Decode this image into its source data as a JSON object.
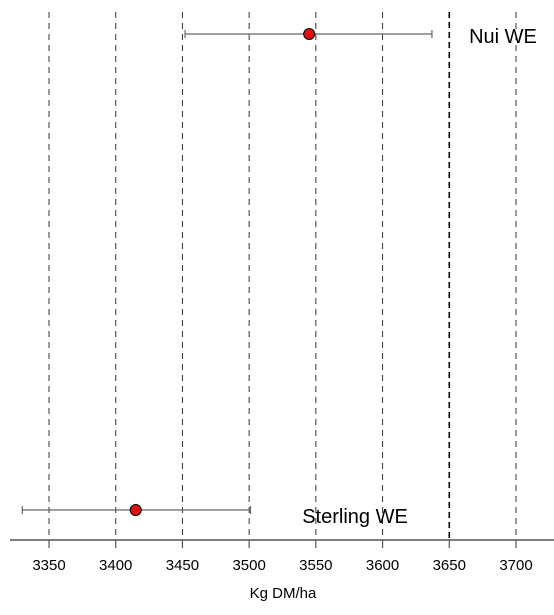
{
  "chart_data": {
    "type": "scatter",
    "subtype": "point-with-error-bars",
    "title": "",
    "xlabel": "Kg DM/ha",
    "ylabel": "",
    "xlim": [
      3330,
      3725
    ],
    "xticks": [
      3350,
      3400,
      3450,
      3500,
      3550,
      3600,
      3650,
      3700
    ],
    "grid": "vertical dashed",
    "highlight_line_x": 3650,
    "point_color": "#dd1111",
    "series": [
      {
        "name": "Nui WE",
        "value": 3545,
        "lower": 3452,
        "upper": 3637
      },
      {
        "name": "Sterling WE",
        "value": 3415,
        "lower": 3330,
        "upper": 3501
      }
    ]
  }
}
